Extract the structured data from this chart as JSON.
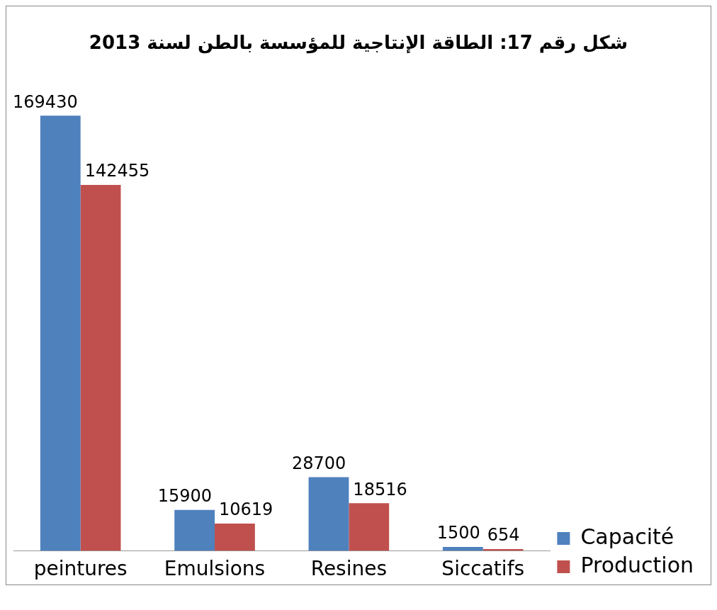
{
  "chart_data": {
    "type": "bar",
    "title": "شكل رقم 17: الطاقة الإنتاجية للمؤسسة بالطن لسنة 2013",
    "categories": [
      "peintures",
      "Emulsions",
      "Resines",
      "Siccatifs"
    ],
    "series": [
      {
        "name": "Capacité",
        "color": "#4f81bd",
        "values": [
          169430,
          15900,
          28700,
          1500
        ]
      },
      {
        "name": "Production",
        "color": "#c0504d",
        "values": [
          142455,
          10619,
          18516,
          654
        ]
      }
    ],
    "data_labels": true,
    "legend": "bottom right",
    "grid": false
  }
}
